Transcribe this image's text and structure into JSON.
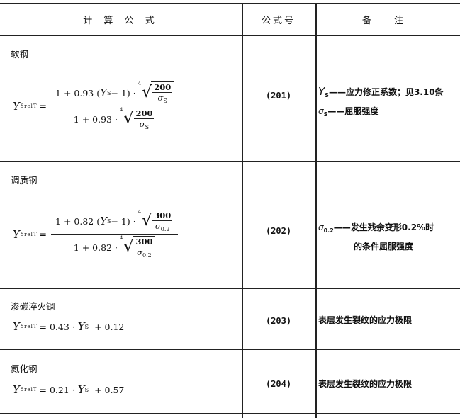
{
  "header": {
    "formula": "计 算 公 式",
    "number": "公式号",
    "remark": "备  注"
  },
  "rows": [
    {
      "label": "软钢",
      "lhs": "Y",
      "lhs_sub": "δrelT",
      "eq": "=",
      "num_prefix": "1 + 0.93 (",
      "ys": "Y",
      "ys_sub": "S",
      "num_mid": " − 1) ·",
      "root_index": "4",
      "root_num": "200",
      "root_den": "σ",
      "root_den_sub": "S",
      "den_prefix": "1 + 0.93 ·",
      "number": "(201)",
      "remarks": [
        {
          "sym": "Y",
          "sub": "S",
          "text": "——应力修正系数；见3.10条"
        },
        {
          "sym": "σ",
          "sub": "S",
          "text": "——屈服强度"
        }
      ]
    },
    {
      "label": "调质钢",
      "lhs": "Y",
      "lhs_sub": "δrelT",
      "eq": "=",
      "num_prefix": "1 + 0.82 (",
      "ys": "Y",
      "ys_sub": "S",
      "num_mid": " − 1) ·",
      "root_index": "4",
      "root_num": "300",
      "root_den": "σ",
      "root_den_sub": "0.2",
      "den_prefix": "1 + 0.82 ·",
      "number": "(202)",
      "remarks": [
        {
          "sym": "σ",
          "sub": "0.2",
          "text": "——发生残余变形0.2%时"
        },
        {
          "text": "的条件屈服强度"
        }
      ]
    },
    {
      "label": "渗碳淬火钢",
      "lhs": "Y",
      "lhs_sub": "δrelT",
      "rhs_a": "= 0.43 ·",
      "ys": "Y",
      "ys_sub": "S",
      "rhs_b": "+ 0.12",
      "number": "(203)",
      "remark": "表层发生裂纹的应力极限"
    },
    {
      "label": "氮化钢",
      "lhs": "Y",
      "lhs_sub": "δrelT",
      "rhs_a": "= 0.21 ·",
      "ys": "Y",
      "ys_sub": "S",
      "rhs_b": "+ 0.57",
      "number": "(204)",
      "remark": "表层发生裂纹的应力极限"
    }
  ]
}
